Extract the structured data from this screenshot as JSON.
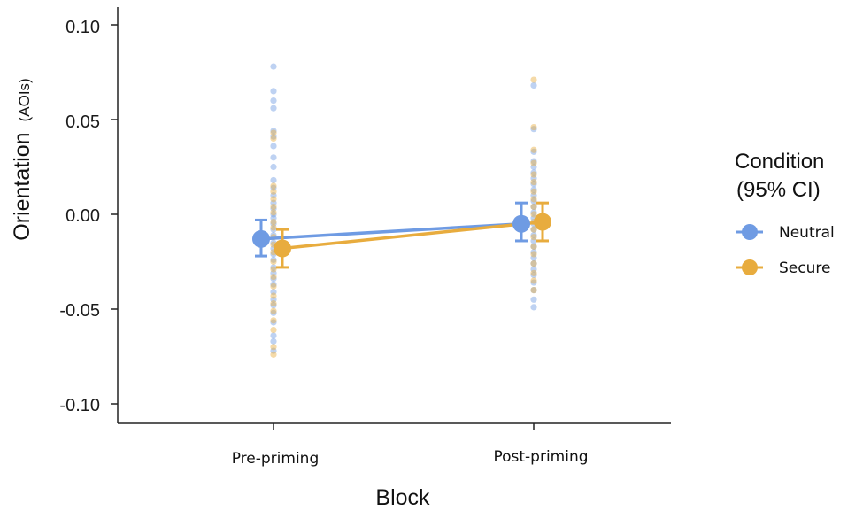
{
  "chart_data": {
    "type": "scatter",
    "xlabel": "Block",
    "ylabel": "Orientation",
    "ylabel_unit": "(AOIs)",
    "categories": [
      "Pre-priming",
      "Post-priming"
    ],
    "ylim": [
      -0.11,
      0.11
    ],
    "yticks": [
      0.1,
      0.05,
      0.0,
      -0.05,
      -0.1
    ],
    "ytick_labels": [
      "0.10",
      "0.05",
      "0.00",
      "-0.05",
      "-0.10"
    ],
    "grid": false,
    "legend": {
      "title_line1": "Condition",
      "title_line2": "(95% CI)",
      "placement": "right"
    },
    "series": [
      {
        "name": "Neutral",
        "color": "#6f9be3",
        "means": [
          -0.013,
          -0.005
        ],
        "ci_low": [
          -0.022,
          -0.014
        ],
        "ci_high": [
          -0.003,
          0.006
        ],
        "raw": [
          [
            0.078,
            0.065,
            0.06,
            0.056,
            0.044,
            0.041,
            0.036,
            0.03,
            0.025,
            0.018,
            0.014,
            0.01,
            0.006,
            0.003,
            0.0,
            -0.002,
            -0.005,
            -0.008,
            -0.011,
            -0.015,
            -0.018,
            -0.021,
            -0.024,
            -0.028,
            -0.031,
            -0.034,
            -0.037,
            -0.041,
            -0.045,
            -0.048,
            -0.052,
            -0.057,
            -0.064,
            -0.067,
            -0.072
          ],
          [
            0.068,
            0.045,
            0.033,
            0.028,
            0.025,
            0.022,
            0.019,
            0.016,
            0.013,
            0.01,
            0.007,
            0.004,
            0.001,
            -0.002,
            -0.005,
            -0.008,
            -0.011,
            -0.014,
            -0.017,
            -0.02,
            -0.023,
            -0.026,
            -0.029,
            -0.032,
            -0.036,
            -0.04,
            -0.045,
            -0.049
          ]
        ]
      },
      {
        "name": "Secure",
        "color": "#e8ac3e",
        "means": [
          -0.018,
          -0.004
        ],
        "ci_low": [
          -0.028,
          -0.014
        ],
        "ci_high": [
          -0.008,
          0.006
        ],
        "raw": [
          [
            0.043,
            0.04,
            0.015,
            0.012,
            0.008,
            0.004,
            0.001,
            -0.004,
            -0.007,
            -0.012,
            -0.016,
            -0.02,
            -0.025,
            -0.029,
            -0.033,
            -0.038,
            -0.043,
            -0.047,
            -0.051,
            -0.056,
            -0.061,
            -0.07,
            -0.074
          ],
          [
            0.071,
            0.046,
            0.034,
            0.027,
            0.021,
            0.017,
            0.012,
            0.008,
            0.004,
            0.0,
            -0.004,
            -0.008,
            -0.012,
            -0.017,
            -0.021,
            -0.026,
            -0.031,
            -0.035,
            -0.04
          ]
        ]
      }
    ]
  }
}
